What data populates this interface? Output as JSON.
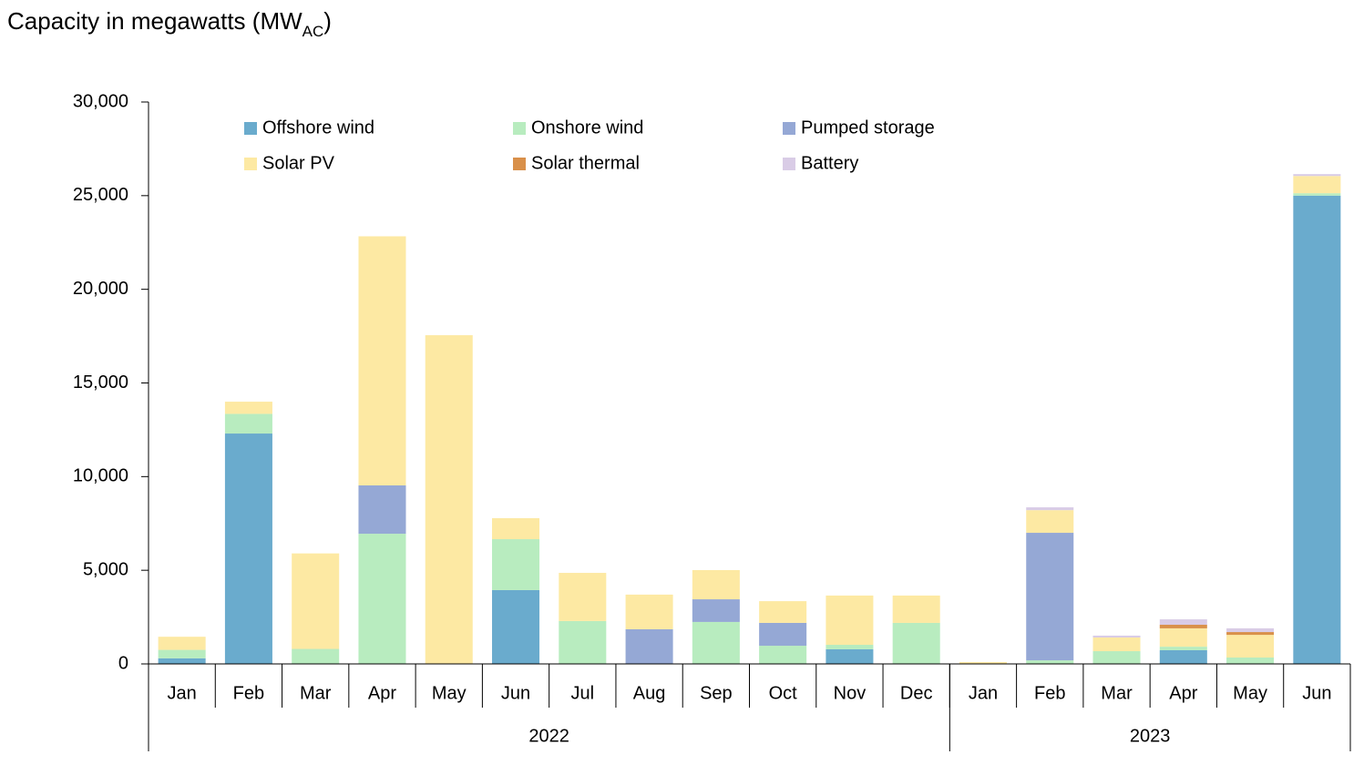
{
  "chart_data": {
    "type": "stacked_bar",
    "subtitle": {
      "text": "Capacity in megawatts (MW",
      "subscript": "AC",
      "suffix": ")"
    },
    "categories": [
      "Jan",
      "Feb",
      "Mar",
      "Apr",
      "May",
      "Jun",
      "Jul",
      "Aug",
      "Sep",
      "Oct",
      "Nov",
      "Dec",
      "Jan",
      "Feb",
      "Mar",
      "Apr",
      "May",
      "Jun"
    ],
    "x_groups": [
      {
        "label": "2022",
        "span": 12
      },
      {
        "label": "2023",
        "span": 6
      }
    ],
    "series": [
      {
        "name": "Offshore wind",
        "color": "#6aabcd",
        "values": [
          300,
          12300,
          0,
          0,
          0,
          3940,
          0,
          0,
          0,
          0,
          780,
          0,
          0,
          0,
          0,
          730,
          0,
          25000
        ]
      },
      {
        "name": "Onshore wind",
        "color": "#b8ecbf",
        "values": [
          450,
          1050,
          800,
          6950,
          0,
          2720,
          2290,
          0,
          2240,
          970,
          240,
          2190,
          0,
          190,
          680,
          190,
          340,
          130
        ]
      },
      {
        "name": "Pumped storage",
        "color": "#95a8d5",
        "values": [
          0,
          0,
          0,
          2580,
          0,
          0,
          0,
          1850,
          1210,
          1220,
          0,
          0,
          0,
          6810,
          0,
          0,
          0,
          0
        ]
      },
      {
        "name": "Solar PV",
        "color": "#fde9a3",
        "values": [
          700,
          650,
          5100,
          13300,
          17550,
          1120,
          2570,
          1850,
          1560,
          1160,
          2630,
          1460,
          100,
          1210,
          730,
          980,
          1210,
          920
        ]
      },
      {
        "name": "Solar thermal",
        "color": "#d9904a",
        "values": [
          0,
          0,
          0,
          0,
          0,
          0,
          0,
          0,
          0,
          0,
          0,
          0,
          0,
          0,
          0,
          190,
          150,
          0
        ]
      },
      {
        "name": "Battery",
        "color": "#d9cce6",
        "values": [
          0,
          0,
          0,
          0,
          0,
          0,
          0,
          0,
          0,
          0,
          0,
          0,
          0,
          150,
          100,
          290,
          200,
          100
        ]
      }
    ],
    "ylim": [
      0,
      30000
    ],
    "yticks": [
      0,
      {
        "value": 5000,
        "label": "5,000"
      },
      {
        "value": 10000,
        "label": "10,000"
      },
      {
        "value": 15000,
        "label": "15,000"
      },
      {
        "value": 20000,
        "label": "20,000"
      },
      {
        "value": 25000,
        "label": "25,000"
      },
      {
        "value": 30000,
        "label": "30,000"
      }
    ],
    "grid": false,
    "legend_position": "top-left"
  }
}
